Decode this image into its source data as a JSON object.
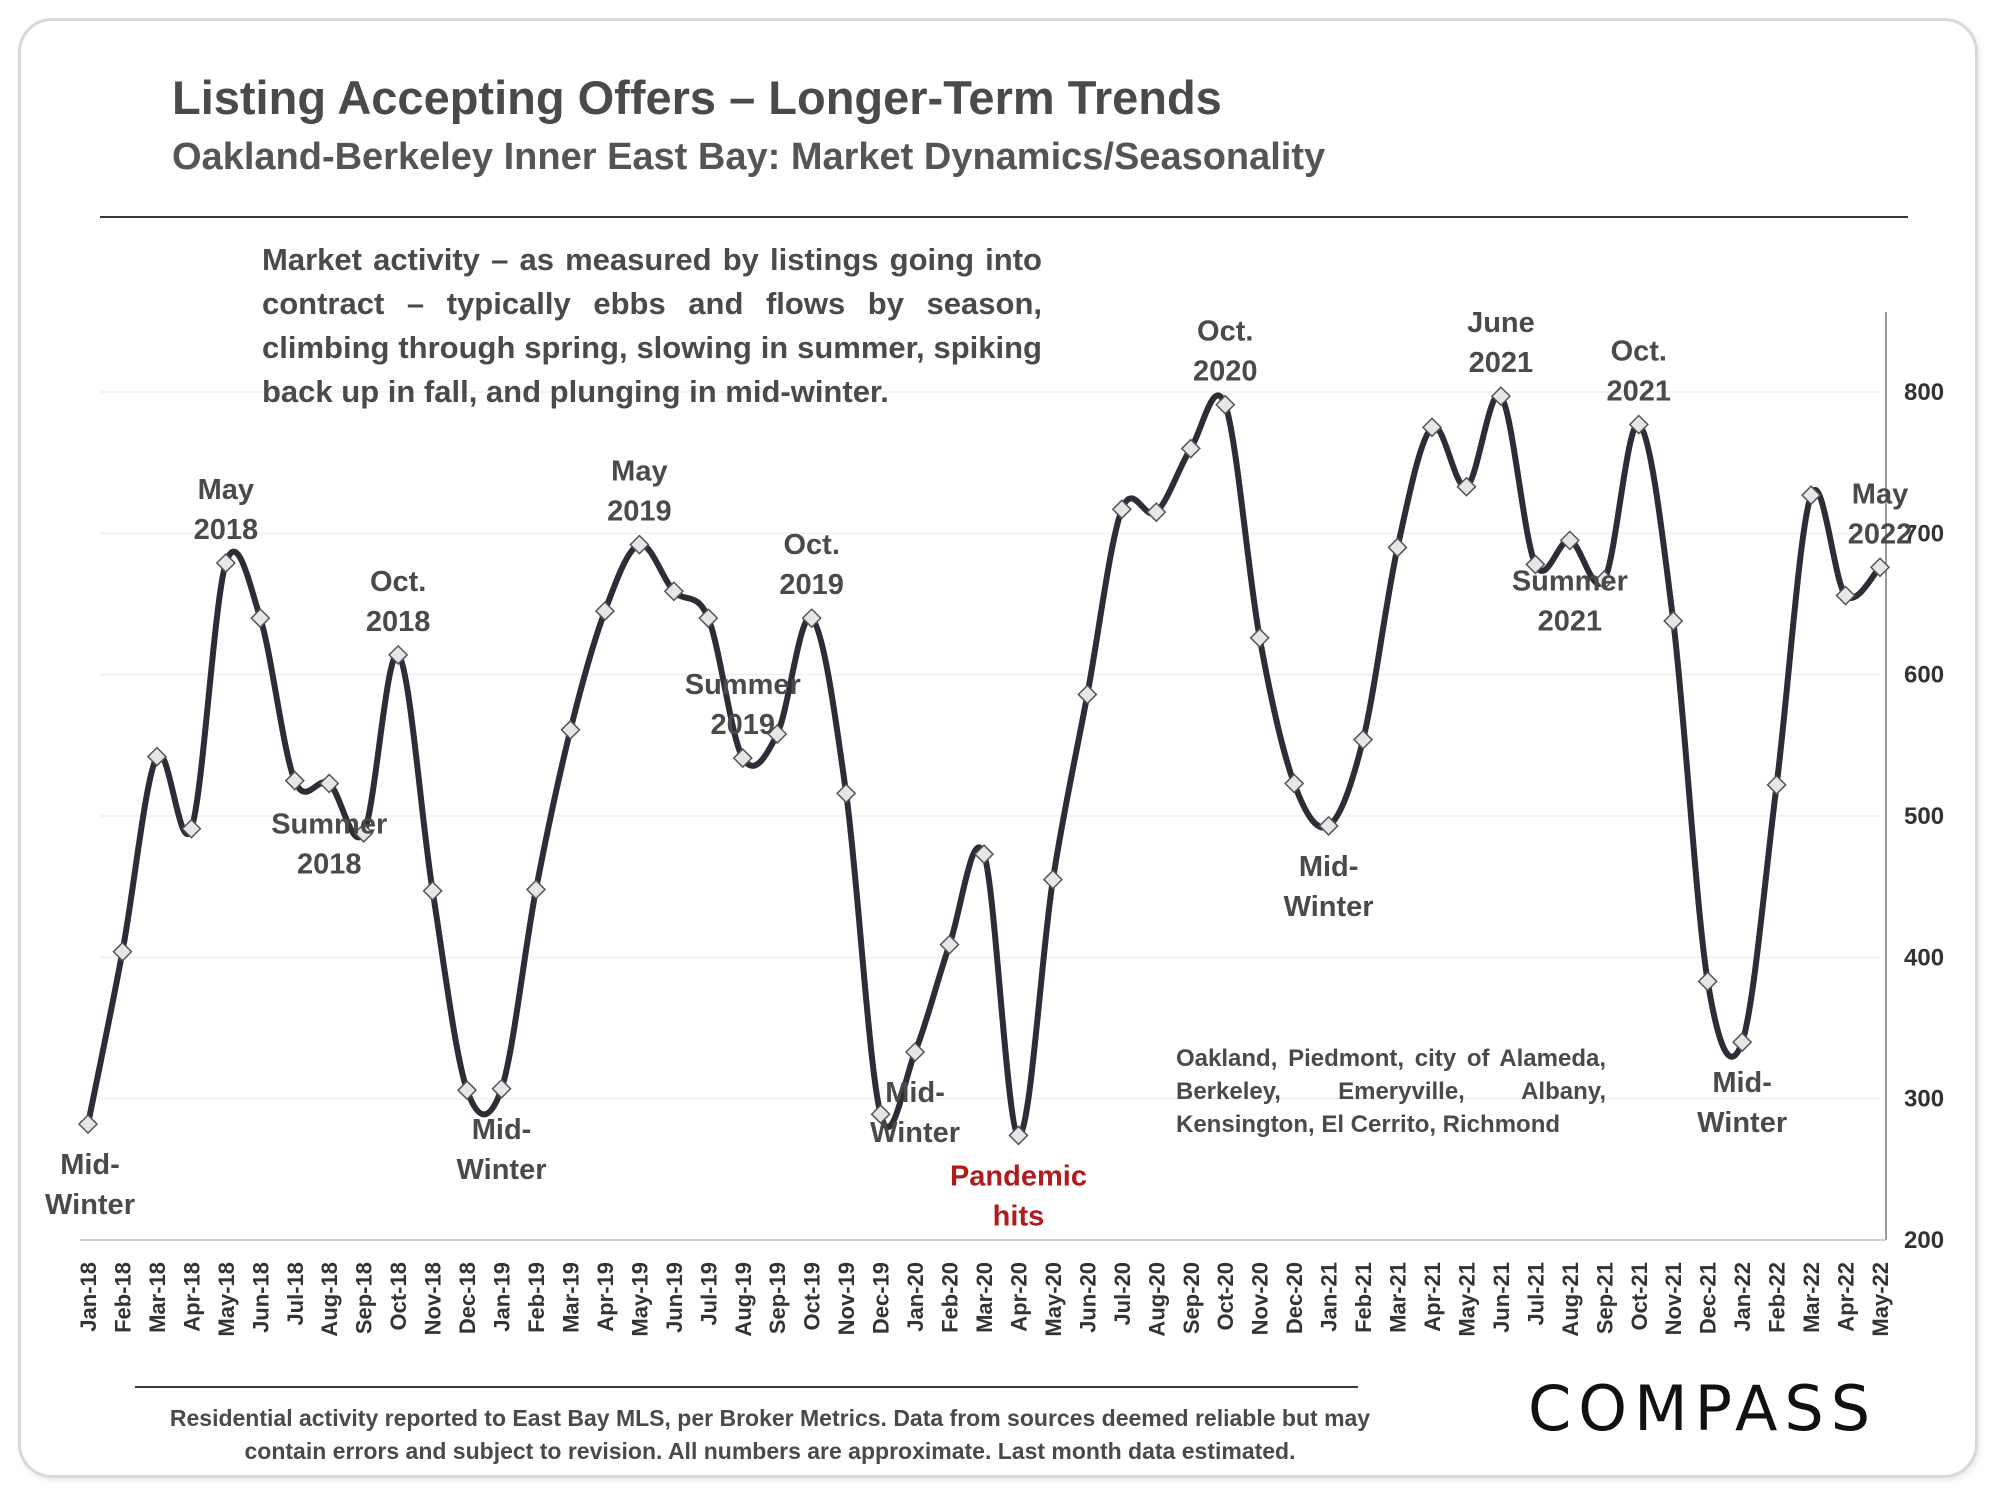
{
  "title": "Listing Accepting Offers – Longer-Term Trends",
  "subtitle": "Oakland-Berkeley Inner East Bay: Market Dynamics/Seasonality",
  "note": "Market activity – as measured by listings going into contract – typically ebbs and flows by season, climbing through spring, slowing in summer, spiking back up in fall, and plunging in mid-winter.",
  "cities_note": "Oakland, Piedmont, city of Alameda, Berkeley, Emeryville, Albany, Kensington, El Cerrito, Richmond",
  "footer": "Residential activity reported to East Bay MLS, per Broker Metrics. Data from sources deemed reliable but may contain errors and subject to revision. All numbers are approximate. Last month data estimated.",
  "logo": "COMPASS",
  "colors": {
    "line": "#2b2e36",
    "marker_fill": "#e6e6e6",
    "annotation_red": "#b01c1c"
  },
  "chart_data": {
    "type": "line",
    "title": "Listing Accepting Offers – Longer-Term Trends",
    "categories": [
      "Jan-18",
      "Feb-18",
      "Mar-18",
      "Apr-18",
      "May-18",
      "Jun-18",
      "Jul-18",
      "Aug-18",
      "Sep-18",
      "Oct-18",
      "Nov-18",
      "Dec-18",
      "Jan-19",
      "Feb-19",
      "Mar-19",
      "Apr-19",
      "May-19",
      "Jun-19",
      "Jul-19",
      "Aug-19",
      "Sep-19",
      "Oct-19",
      "Nov-19",
      "Dec-19",
      "Jan-20",
      "Feb-20",
      "Mar-20",
      "Apr-20",
      "May-20",
      "Jun-20",
      "Jul-20",
      "Aug-20",
      "Sep-20",
      "Oct-20",
      "Nov-20",
      "Dec-20",
      "Jan-21",
      "Feb-21",
      "Mar-21",
      "Apr-21",
      "May-21",
      "Jun-21",
      "Jul-21",
      "Aug-21",
      "Sep-21",
      "Oct-21",
      "Nov-21",
      "Dec-21",
      "Jan-22",
      "Feb-22",
      "Mar-22",
      "Apr-22",
      "May-22"
    ],
    "values": [
      282,
      404,
      542,
      491,
      679,
      640,
      525,
      523,
      488,
      614,
      447,
      306,
      307,
      448,
      561,
      645,
      692,
      659,
      640,
      541,
      558,
      640,
      516,
      289,
      333,
      409,
      473,
      274,
      455,
      586,
      717,
      715,
      760,
      791,
      626,
      523,
      493,
      554,
      690,
      775,
      733,
      797,
      678,
      695,
      667,
      777,
      638,
      383,
      340,
      522,
      727,
      656,
      676
    ],
    "ylim": [
      200,
      850
    ],
    "yticks": [
      200,
      300,
      400,
      500,
      600,
      700,
      800
    ],
    "y_axis_position": "right",
    "grid": true,
    "annotations": [
      {
        "text": "Mid-|Winter",
        "idx": 0,
        "pos": "below"
      },
      {
        "text": "May|2018",
        "idx": 4,
        "pos": "above"
      },
      {
        "text": "Summer|2018",
        "idx": 7,
        "pos": "below"
      },
      {
        "text": "Oct.|2018",
        "idx": 9,
        "pos": "above"
      },
      {
        "text": "Mid-|Winter",
        "idx": 12,
        "pos": "below"
      },
      {
        "text": "May|2019",
        "idx": 16,
        "pos": "above"
      },
      {
        "text": "Summer|2019",
        "idx": 19,
        "pos": "above"
      },
      {
        "text": "Oct.|2019",
        "idx": 21,
        "pos": "above"
      },
      {
        "text": "Mid-|Winter",
        "idx": 24,
        "pos": "below"
      },
      {
        "text": "Pandemic|hits",
        "idx": 27,
        "pos": "below",
        "color": "red"
      },
      {
        "text": "Oct.|2020",
        "idx": 33,
        "pos": "above"
      },
      {
        "text": "Mid-|Winter",
        "idx": 36,
        "pos": "below"
      },
      {
        "text": "June|2021",
        "idx": 41,
        "pos": "above"
      },
      {
        "text": "Summer|2021",
        "idx": 43,
        "pos": "below"
      },
      {
        "text": "Oct.|2021",
        "idx": 45,
        "pos": "above"
      },
      {
        "text": "Mid-|Winter",
        "idx": 48,
        "pos": "below"
      },
      {
        "text": "May|2022",
        "idx": 52,
        "pos": "above"
      }
    ]
  }
}
